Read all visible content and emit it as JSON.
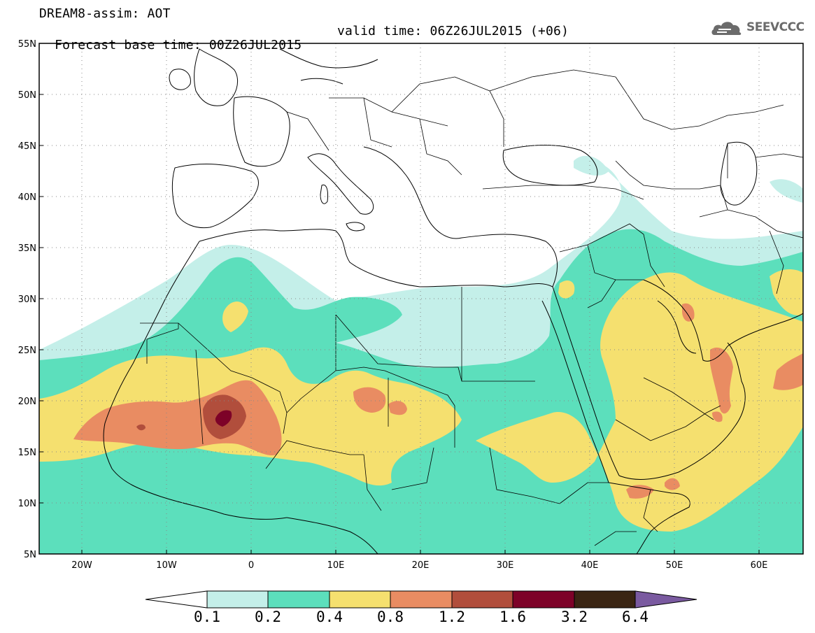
{
  "header": {
    "title": "DREAM8-assim: AOT",
    "base_time": "Forecast base time: 00Z26JUL2015",
    "valid_time": "valid time: 06Z26JUL2015 (+06)"
  },
  "logo": {
    "text": "SEEVCCC",
    "icon": "cloud-logo-icon",
    "color": "#6b6b6b"
  },
  "map": {
    "lon_range": [
      -25,
      65
    ],
    "lat_range": [
      5,
      55
    ],
    "lat_labels": [
      "55N",
      "50N",
      "45N",
      "40N",
      "35N",
      "30N",
      "25N",
      "20N",
      "15N",
      "10N",
      "5N"
    ],
    "lon_labels": [
      "20W",
      "10W",
      "0",
      "10E",
      "20E",
      "30E",
      "40E",
      "50E",
      "60E"
    ],
    "grid": "dotted"
  },
  "colorbar": {
    "labels": [
      "0.1",
      "0.2",
      "0.4",
      "0.8",
      "1.2",
      "1.6",
      "3.2",
      "6.4"
    ],
    "colors": {
      "under": "#ffffff",
      "c1": "#c4efe9",
      "c2": "#5cdfbc",
      "c3": "#f5e06f",
      "c4": "#e98c62",
      "c5": "#b14e3c",
      "c6": "#7d0228",
      "c7": "#3a2513",
      "over": "#7a5aa0"
    }
  }
}
